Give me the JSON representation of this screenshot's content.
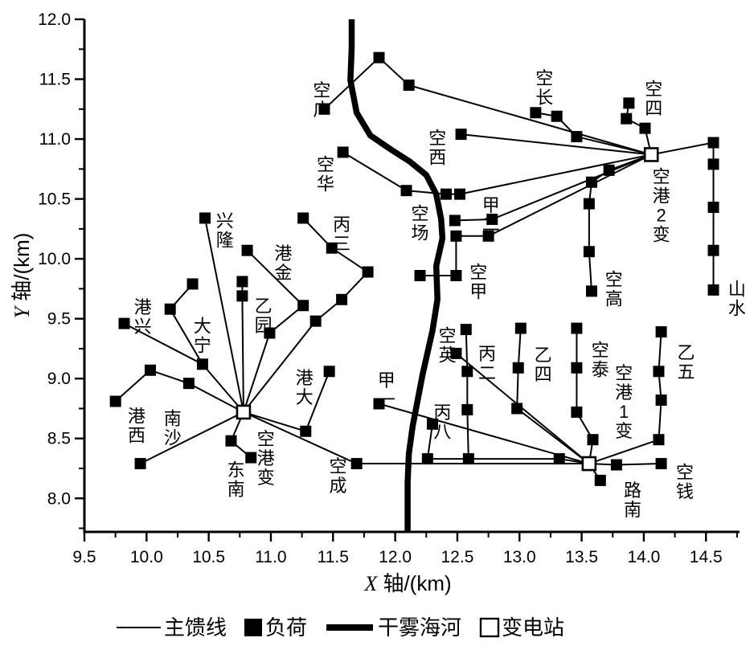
{
  "figure": {
    "x_axis": {
      "title_letter": "X",
      "title_rest": " 轴/(km)"
    },
    "y_axis": {
      "title_letter": "Y",
      "title_rest": " 轴/(km)"
    }
  },
  "legend": {
    "items": [
      {
        "symbol": "line-thin",
        "label": "主馈线"
      },
      {
        "symbol": "square-filled",
        "label": "负荷"
      },
      {
        "symbol": "line-thick",
        "label": "干雾海河"
      },
      {
        "symbol": "square-open",
        "label": "变电站"
      }
    ]
  },
  "chart_data": {
    "type": "scatter",
    "title": "",
    "xlabel": "X 轴/(km)",
    "ylabel": "Y 轴/(km)",
    "xlim": [
      9.5,
      14.77
    ],
    "ylim": [
      7.72,
      12.0
    ],
    "grid": false,
    "legend_position": "bottom",
    "x_major_ticks": [
      "9.5",
      "10.0",
      "10.5",
      "11.0",
      "11.5",
      "12.0",
      "12.5",
      "13.0",
      "13.5",
      "14.0",
      "14.5"
    ],
    "x_minor_ticks": [
      9.75,
      10.25,
      10.75,
      11.25,
      11.75,
      12.25,
      12.75,
      13.25,
      13.75,
      14.25,
      14.75
    ],
    "y_major_ticks": [
      "8.0",
      "8.5",
      "9.0",
      "9.5",
      "10.0",
      "10.5",
      "11.0",
      "11.5",
      "12.0"
    ],
    "y_minor_ticks": [
      7.75,
      8.25,
      8.75,
      9.25,
      9.75,
      10.25,
      10.75,
      11.25,
      11.75
    ],
    "substations": [
      {
        "id": "s0",
        "label": "空港变",
        "x": 10.78,
        "y": 8.72
      },
      {
        "id": "s1",
        "label": "空港1变",
        "x": 13.56,
        "y": 8.29
      },
      {
        "id": "s2",
        "label": "空港2变",
        "x": 14.06,
        "y": 10.87
      }
    ],
    "loads": [
      {
        "id": "l1",
        "x": 13.46,
        "y": 11.02
      },
      {
        "id": "l2",
        "x": 13.3,
        "y": 11.19
      },
      {
        "id": "l3",
        "x": 13.13,
        "y": 11.22
      },
      {
        "id": "l4",
        "x": 14.01,
        "y": 11.09
      },
      {
        "id": "l5",
        "x": 13.86,
        "y": 11.17
      },
      {
        "id": "l6",
        "x": 13.88,
        "y": 11.3
      },
      {
        "id": "l7",
        "x": 14.56,
        "y": 10.97
      },
      {
        "id": "l8",
        "x": 14.56,
        "y": 10.79
      },
      {
        "id": "l9",
        "x": 14.56,
        "y": 10.43
      },
      {
        "id": "l10",
        "x": 14.56,
        "y": 10.07
      },
      {
        "id": "l11",
        "x": 14.56,
        "y": 9.74
      },
      {
        "id": "l12",
        "x": 12.53,
        "y": 11.04
      },
      {
        "id": "l13",
        "x": 12.11,
        "y": 11.45
      },
      {
        "id": "l14",
        "x": 11.87,
        "y": 11.68
      },
      {
        "id": "l15",
        "x": 11.43,
        "y": 11.25
      },
      {
        "id": "l16",
        "x": 12.52,
        "y": 10.54
      },
      {
        "id": "l17",
        "x": 12.41,
        "y": 10.54
      },
      {
        "id": "l18",
        "x": 12.09,
        "y": 10.57
      },
      {
        "id": "l19",
        "x": 11.58,
        "y": 10.89
      },
      {
        "id": "l20",
        "x": 12.78,
        "y": 10.33
      },
      {
        "id": "l21",
        "x": 12.48,
        "y": 10.32
      },
      {
        "id": "l22",
        "x": 12.75,
        "y": 10.19
      },
      {
        "id": "l23",
        "x": 12.49,
        "y": 10.19
      },
      {
        "id": "l24",
        "x": 12.49,
        "y": 9.86
      },
      {
        "id": "l25",
        "x": 12.2,
        "y": 9.86
      },
      {
        "id": "l26",
        "x": 13.72,
        "y": 10.74
      },
      {
        "id": "l27",
        "x": 13.58,
        "y": 10.64
      },
      {
        "id": "l28",
        "x": 13.56,
        "y": 10.46
      },
      {
        "id": "l29",
        "x": 13.56,
        "y": 10.06
      },
      {
        "id": "l30",
        "x": 13.58,
        "y": 9.73
      },
      {
        "id": "l31",
        "x": 10.47,
        "y": 10.34
      },
      {
        "id": "l32",
        "x": 10.77,
        "y": 9.81
      },
      {
        "id": "l33",
        "x": 10.77,
        "y": 9.69
      },
      {
        "id": "l34",
        "x": 10.99,
        "y": 9.38
      },
      {
        "id": "l35",
        "x": 11.26,
        "y": 9.61
      },
      {
        "id": "l36",
        "x": 10.81,
        "y": 10.07
      },
      {
        "id": "l37",
        "x": 11.36,
        "y": 9.48
      },
      {
        "id": "l38",
        "x": 11.57,
        "y": 9.66
      },
      {
        "id": "l39",
        "x": 11.78,
        "y": 9.89
      },
      {
        "id": "l40",
        "x": 11.49,
        "y": 10.09
      },
      {
        "id": "l41",
        "x": 11.26,
        "y": 10.34
      },
      {
        "id": "l42",
        "x": 10.45,
        "y": 9.12
      },
      {
        "id": "l43",
        "x": 10.19,
        "y": 9.58
      },
      {
        "id": "l44",
        "x": 10.37,
        "y": 9.79
      },
      {
        "id": "l45",
        "x": 9.82,
        "y": 9.46
      },
      {
        "id": "l46",
        "x": 10.34,
        "y": 8.96
      },
      {
        "id": "l47",
        "x": 10.03,
        "y": 9.07
      },
      {
        "id": "l48",
        "x": 9.75,
        "y": 8.81
      },
      {
        "id": "l49",
        "x": 9.95,
        "y": 8.29
      },
      {
        "id": "l50",
        "x": 10.68,
        "y": 8.48
      },
      {
        "id": "l51",
        "x": 10.84,
        "y": 8.34
      },
      {
        "id": "l52",
        "x": 11.28,
        "y": 8.56
      },
      {
        "id": "l53",
        "x": 11.47,
        "y": 9.06
      },
      {
        "id": "l54",
        "x": 11.69,
        "y": 8.29
      },
      {
        "id": "l55",
        "x": 13.32,
        "y": 8.33
      },
      {
        "id": "l56",
        "x": 12.59,
        "y": 8.33
      },
      {
        "id": "l57",
        "x": 12.26,
        "y": 8.33
      },
      {
        "id": "l58",
        "x": 11.87,
        "y": 8.79
      },
      {
        "id": "l59",
        "x": 12.49,
        "y": 9.21
      },
      {
        "id": "l60",
        "x": 12.57,
        "y": 9.41
      },
      {
        "id": "l61",
        "x": 12.58,
        "y": 9.06
      },
      {
        "id": "l62",
        "x": 12.58,
        "y": 8.74
      },
      {
        "id": "l63",
        "x": 12.3,
        "y": 8.62
      },
      {
        "id": "l64",
        "x": 12.98,
        "y": 8.75
      },
      {
        "id": "l65",
        "x": 12.99,
        "y": 9.09
      },
      {
        "id": "l66",
        "x": 13.01,
        "y": 9.42
      },
      {
        "id": "l67",
        "x": 13.59,
        "y": 8.49
      },
      {
        "id": "l68",
        "x": 13.46,
        "y": 8.72
      },
      {
        "id": "l69",
        "x": 13.46,
        "y": 9.09
      },
      {
        "id": "l70",
        "x": 13.46,
        "y": 9.42
      },
      {
        "id": "l71",
        "x": 14.12,
        "y": 8.49
      },
      {
        "id": "l72",
        "x": 14.14,
        "y": 8.82
      },
      {
        "id": "l73",
        "x": 14.12,
        "y": 9.06
      },
      {
        "id": "l74",
        "x": 14.14,
        "y": 9.39
      },
      {
        "id": "l75",
        "x": 13.78,
        "y": 8.28
      },
      {
        "id": "l76",
        "x": 14.14,
        "y": 8.29
      },
      {
        "id": "l77",
        "x": 13.65,
        "y": 8.15
      }
    ],
    "feeders": [
      [
        "s2",
        "l1"
      ],
      [
        "l1",
        "l2"
      ],
      [
        "l2",
        "l3"
      ],
      [
        "s2",
        "l4"
      ],
      [
        "l4",
        "l5"
      ],
      [
        "l5",
        "l6"
      ],
      [
        "s2",
        "l7"
      ],
      [
        "l7",
        "l8"
      ],
      [
        "l8",
        "l9"
      ],
      [
        "l9",
        "l10"
      ],
      [
        "l10",
        "l11"
      ],
      [
        "s2",
        "l12"
      ],
      [
        "s2",
        "l13"
      ],
      [
        "l13",
        "l14"
      ],
      [
        "l14",
        "l15"
      ],
      [
        "s2",
        "l16"
      ],
      [
        "l16",
        "l17"
      ],
      [
        "l17",
        "l18"
      ],
      [
        "l18",
        "l19"
      ],
      [
        "s2",
        "l20"
      ],
      [
        "l20",
        "l21"
      ],
      [
        "s2",
        "l22"
      ],
      [
        "l22",
        "l23"
      ],
      [
        "l23",
        "l24"
      ],
      [
        "l24",
        "l25"
      ],
      [
        "s2",
        "l26"
      ],
      [
        "l26",
        "l27"
      ],
      [
        "l27",
        "l28"
      ],
      [
        "l28",
        "l29"
      ],
      [
        "l29",
        "l30"
      ],
      [
        "s0",
        "l31"
      ],
      [
        "s0",
        "l33"
      ],
      [
        "l33",
        "l32"
      ],
      [
        "s0",
        "l34"
      ],
      [
        "l34",
        "l35"
      ],
      [
        "l35",
        "l36"
      ],
      [
        "s0",
        "l37"
      ],
      [
        "l37",
        "l38"
      ],
      [
        "l38",
        "l39"
      ],
      [
        "l39",
        "l40"
      ],
      [
        "l40",
        "l41"
      ],
      [
        "s0",
        "l42"
      ],
      [
        "l42",
        "l43"
      ],
      [
        "l43",
        "l44"
      ],
      [
        "l42",
        "l45"
      ],
      [
        "s0",
        "l46"
      ],
      [
        "l46",
        "l47"
      ],
      [
        "l47",
        "l48"
      ],
      [
        "s0",
        "l49"
      ],
      [
        "s0",
        "l50"
      ],
      [
        "l50",
        "l51"
      ],
      [
        "s0",
        "l52"
      ],
      [
        "l52",
        "l53"
      ],
      [
        "s0",
        "l54"
      ],
      [
        "s1",
        "l55"
      ],
      [
        "l55",
        "l56"
      ],
      [
        "l56",
        "l57"
      ],
      [
        "s1",
        "l54"
      ],
      [
        "s1",
        "l58"
      ],
      [
        "s1",
        "l59"
      ],
      [
        "l60",
        "l61"
      ],
      [
        "l61",
        "l62"
      ],
      [
        "l62",
        "l56"
      ],
      [
        "l63",
        "l57"
      ],
      [
        "s1",
        "l64"
      ],
      [
        "l64",
        "l65"
      ],
      [
        "l65",
        "l66"
      ],
      [
        "s1",
        "l67"
      ],
      [
        "l67",
        "l68"
      ],
      [
        "l68",
        "l69"
      ],
      [
        "l69",
        "l70"
      ],
      [
        "s1",
        "l71"
      ],
      [
        "l71",
        "l72"
      ],
      [
        "l72",
        "l73"
      ],
      [
        "l73",
        "l74"
      ],
      [
        "s1",
        "l75"
      ],
      [
        "l75",
        "l76"
      ],
      [
        "s1",
        "l77"
      ]
    ],
    "river": {
      "name": "干雾海河",
      "path": [
        [
          11.65,
          12.0
        ],
        [
          11.65,
          11.76
        ],
        [
          11.64,
          11.49
        ],
        [
          11.69,
          11.22
        ],
        [
          11.8,
          11.03
        ],
        [
          11.97,
          10.91
        ],
        [
          12.12,
          10.81
        ],
        [
          12.25,
          10.7
        ],
        [
          12.33,
          10.54
        ],
        [
          12.37,
          10.33
        ],
        [
          12.38,
          10.17
        ],
        [
          12.33,
          9.94
        ],
        [
          12.34,
          9.66
        ],
        [
          12.3,
          9.4
        ],
        [
          12.22,
          9.03
        ],
        [
          12.14,
          8.6
        ],
        [
          12.11,
          8.37
        ],
        [
          12.1,
          8.13
        ],
        [
          12.1,
          7.72
        ]
      ]
    },
    "point_labels": [
      {
        "text": "空广",
        "x": 11.41,
        "y": 11.49
      },
      {
        "text": "空长",
        "x": 13.2,
        "y": 11.59
      },
      {
        "text": "空四",
        "x": 14.08,
        "y": 11.5
      },
      {
        "text": "空西",
        "x": 12.34,
        "y": 11.09
      },
      {
        "text": "空华",
        "x": 11.44,
        "y": 10.87
      },
      {
        "text": "空场",
        "x": 12.2,
        "y": 10.46
      },
      {
        "text": "甲二",
        "x": 12.77,
        "y": 10.53
      },
      {
        "text": "空港2变",
        "x": 14.14,
        "y": 10.77
      },
      {
        "text": "兴隆",
        "x": 10.63,
        "y": 10.4
      },
      {
        "text": "丙三",
        "x": 11.57,
        "y": 10.37
      },
      {
        "text": "港金",
        "x": 11.1,
        "y": 10.13
      },
      {
        "text": "空甲",
        "x": 12.67,
        "y": 9.97
      },
      {
        "text": "空高",
        "x": 13.76,
        "y": 9.91
      },
      {
        "text": "山水",
        "x": 14.75,
        "y": 9.83
      },
      {
        "text": "港兴",
        "x": 9.97,
        "y": 9.68
      },
      {
        "text": "乙园",
        "x": 10.94,
        "y": 9.69
      },
      {
        "text": "大宁",
        "x": 10.45,
        "y": 9.52
      },
      {
        "text": "空英",
        "x": 12.42,
        "y": 9.44
      },
      {
        "text": "丙二",
        "x": 12.74,
        "y": 9.29
      },
      {
        "text": "乙四",
        "x": 13.19,
        "y": 9.28
      },
      {
        "text": "空泰",
        "x": 13.65,
        "y": 9.32
      },
      {
        "text": "空港1变",
        "x": 13.84,
        "y": 9.13
      },
      {
        "text": "乙五",
        "x": 14.34,
        "y": 9.3
      },
      {
        "text": "港大",
        "x": 11.27,
        "y": 9.09
      },
      {
        "text": "甲一",
        "x": 11.93,
        "y": 9.07
      },
      {
        "text": "丙八",
        "x": 12.38,
        "y": 8.8
      },
      {
        "text": "港西",
        "x": 9.92,
        "y": 8.77
      },
      {
        "text": "南沙",
        "x": 10.21,
        "y": 8.75
      },
      {
        "text": "空港变",
        "x": 10.96,
        "y": 8.58
      },
      {
        "text": "东南",
        "x": 10.72,
        "y": 8.32
      },
      {
        "text": "空成",
        "x": 11.54,
        "y": 8.35
      },
      {
        "text": "路南",
        "x": 13.91,
        "y": 8.15
      },
      {
        "text": "空钱",
        "x": 14.33,
        "y": 8.3
      }
    ]
  }
}
